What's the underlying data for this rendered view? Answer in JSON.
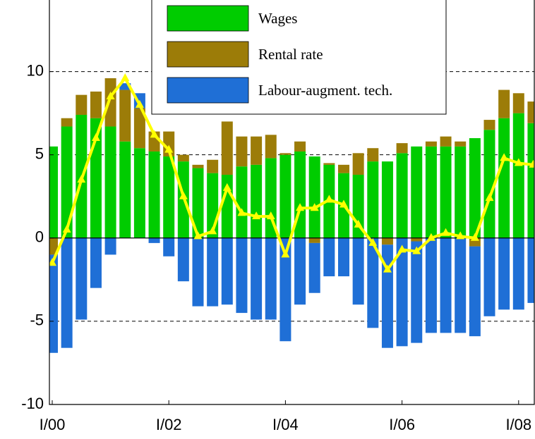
{
  "chart_data": {
    "type": "bar",
    "stacked": true,
    "categories": [
      "I/00",
      null,
      null,
      null,
      null,
      null,
      null,
      null,
      "I/02",
      null,
      null,
      null,
      null,
      null,
      null,
      null,
      "I/04",
      null,
      null,
      null,
      null,
      null,
      null,
      null,
      "I/06",
      null,
      null,
      null,
      null,
      null,
      null,
      null,
      "I/08",
      null
    ],
    "series": [
      {
        "name": "Wages",
        "color": "#00cc00",
        "values": [
          5.5,
          6.7,
          7.4,
          7.2,
          6.7,
          5.8,
          5.4,
          5.2,
          4.9,
          4.6,
          4.2,
          3.9,
          3.8,
          4.3,
          4.4,
          4.8,
          5.0,
          5.2,
          4.9,
          4.4,
          3.9,
          3.8,
          4.6,
          4.6,
          5.1,
          5.5,
          5.5,
          5.5,
          5.5,
          6.0,
          6.5,
          7.2,
          7.5,
          6.9
        ]
      },
      {
        "name": "Rental rate",
        "color": "#9c7c08",
        "values": [
          -1.0,
          0.5,
          1.2,
          1.6,
          2.9,
          3.1,
          2.4,
          1.2,
          1.5,
          0.4,
          0.2,
          0.8,
          3.2,
          1.8,
          1.7,
          1.4,
          0.1,
          0.6,
          -0.3,
          0.1,
          0.5,
          1.3,
          0.8,
          -0.4,
          0.6,
          -0.2,
          0.3,
          0.6,
          0.3,
          -0.5,
          0.6,
          1.7,
          1.2,
          1.3
        ]
      },
      {
        "name": "Labour-augment. tech.",
        "color": "#1f6fd6",
        "values": [
          -5.9,
          -6.6,
          -4.9,
          -3.0,
          -1.0,
          0.4,
          0.9,
          -0.3,
          -1.1,
          -2.6,
          -4.1,
          -4.1,
          -4.0,
          -4.5,
          -4.9,
          -4.9,
          -6.2,
          -4.0,
          -3.0,
          -2.3,
          -2.3,
          -4.0,
          -5.4,
          -6.2,
          -6.5,
          -6.1,
          -5.7,
          -5.7,
          -5.7,
          -5.4,
          -4.7,
          -4.3,
          -4.3,
          -3.9
        ]
      },
      {
        "type": "line",
        "color": "#ffff00",
        "values": [
          -1.5,
          0.5,
          3.5,
          6.0,
          8.5,
          9.6,
          8.0,
          6.2,
          5.3,
          2.5,
          0.1,
          0.4,
          3.0,
          1.5,
          1.3,
          1.3,
          -1.0,
          1.8,
          1.8,
          2.3,
          2.0,
          0.8,
          -0.3,
          -1.9,
          -0.7,
          -0.8,
          0.0,
          0.3,
          0.1,
          0.0,
          2.4,
          4.8,
          4.5,
          4.4
        ]
      }
    ],
    "ylim": [
      -10,
      14.3
    ],
    "yticks": [
      -10,
      -5,
      0,
      5,
      10
    ],
    "grid": true,
    "legend": "top"
  }
}
